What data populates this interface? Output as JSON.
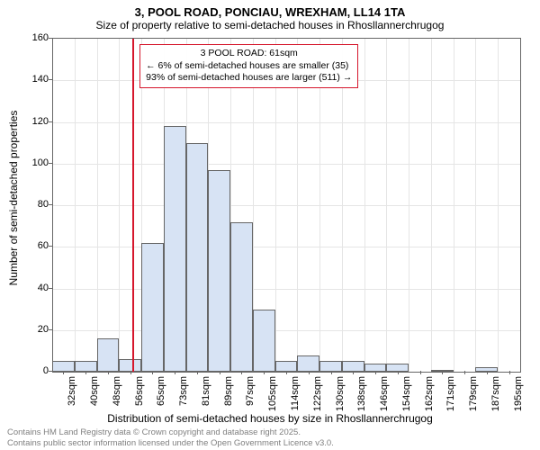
{
  "title_main": "3, POOL ROAD, PONCIAU, WREXHAM, LL14 1TA",
  "title_sub": "Size of property relative to semi-detached houses in Rhosllannerchrugog",
  "y_label": "Number of semi-detached properties",
  "x_label": "Distribution of semi-detached houses by size in Rhosllannerchrugog",
  "callout": {
    "line1": "3 POOL ROAD: 61sqm",
    "line2": "← 6% of semi-detached houses are smaller (35)",
    "line3": "93% of semi-detached houses are larger (511) →"
  },
  "footer": {
    "line1": "Contains HM Land Registry data © Crown copyright and database right 2025.",
    "line2": "Contains public sector information licensed under the Open Government Licence v3.0."
  },
  "chart": {
    "type": "histogram",
    "ylim": [
      0,
      160
    ],
    "ytick_step": 20,
    "bar_fill": "#d7e3f4",
    "bar_border": "#666666",
    "grid_color": "#e5e5e5",
    "marker_color": "#d6172c",
    "marker_x_index": 3.6,
    "background": "#ffffff",
    "x_categories": [
      "32sqm",
      "40sqm",
      "48sqm",
      "56sqm",
      "65sqm",
      "73sqm",
      "81sqm",
      "89sqm",
      "97sqm",
      "105sqm",
      "114sqm",
      "122sqm",
      "130sqm",
      "138sqm",
      "146sqm",
      "154sqm",
      "162sqm",
      "171sqm",
      "179sqm",
      "187sqm",
      "195sqm"
    ],
    "values": [
      5,
      5,
      16,
      6,
      62,
      118,
      110,
      97,
      72,
      30,
      5,
      8,
      5,
      5,
      4,
      4,
      0,
      1,
      0,
      2,
      0
    ]
  }
}
